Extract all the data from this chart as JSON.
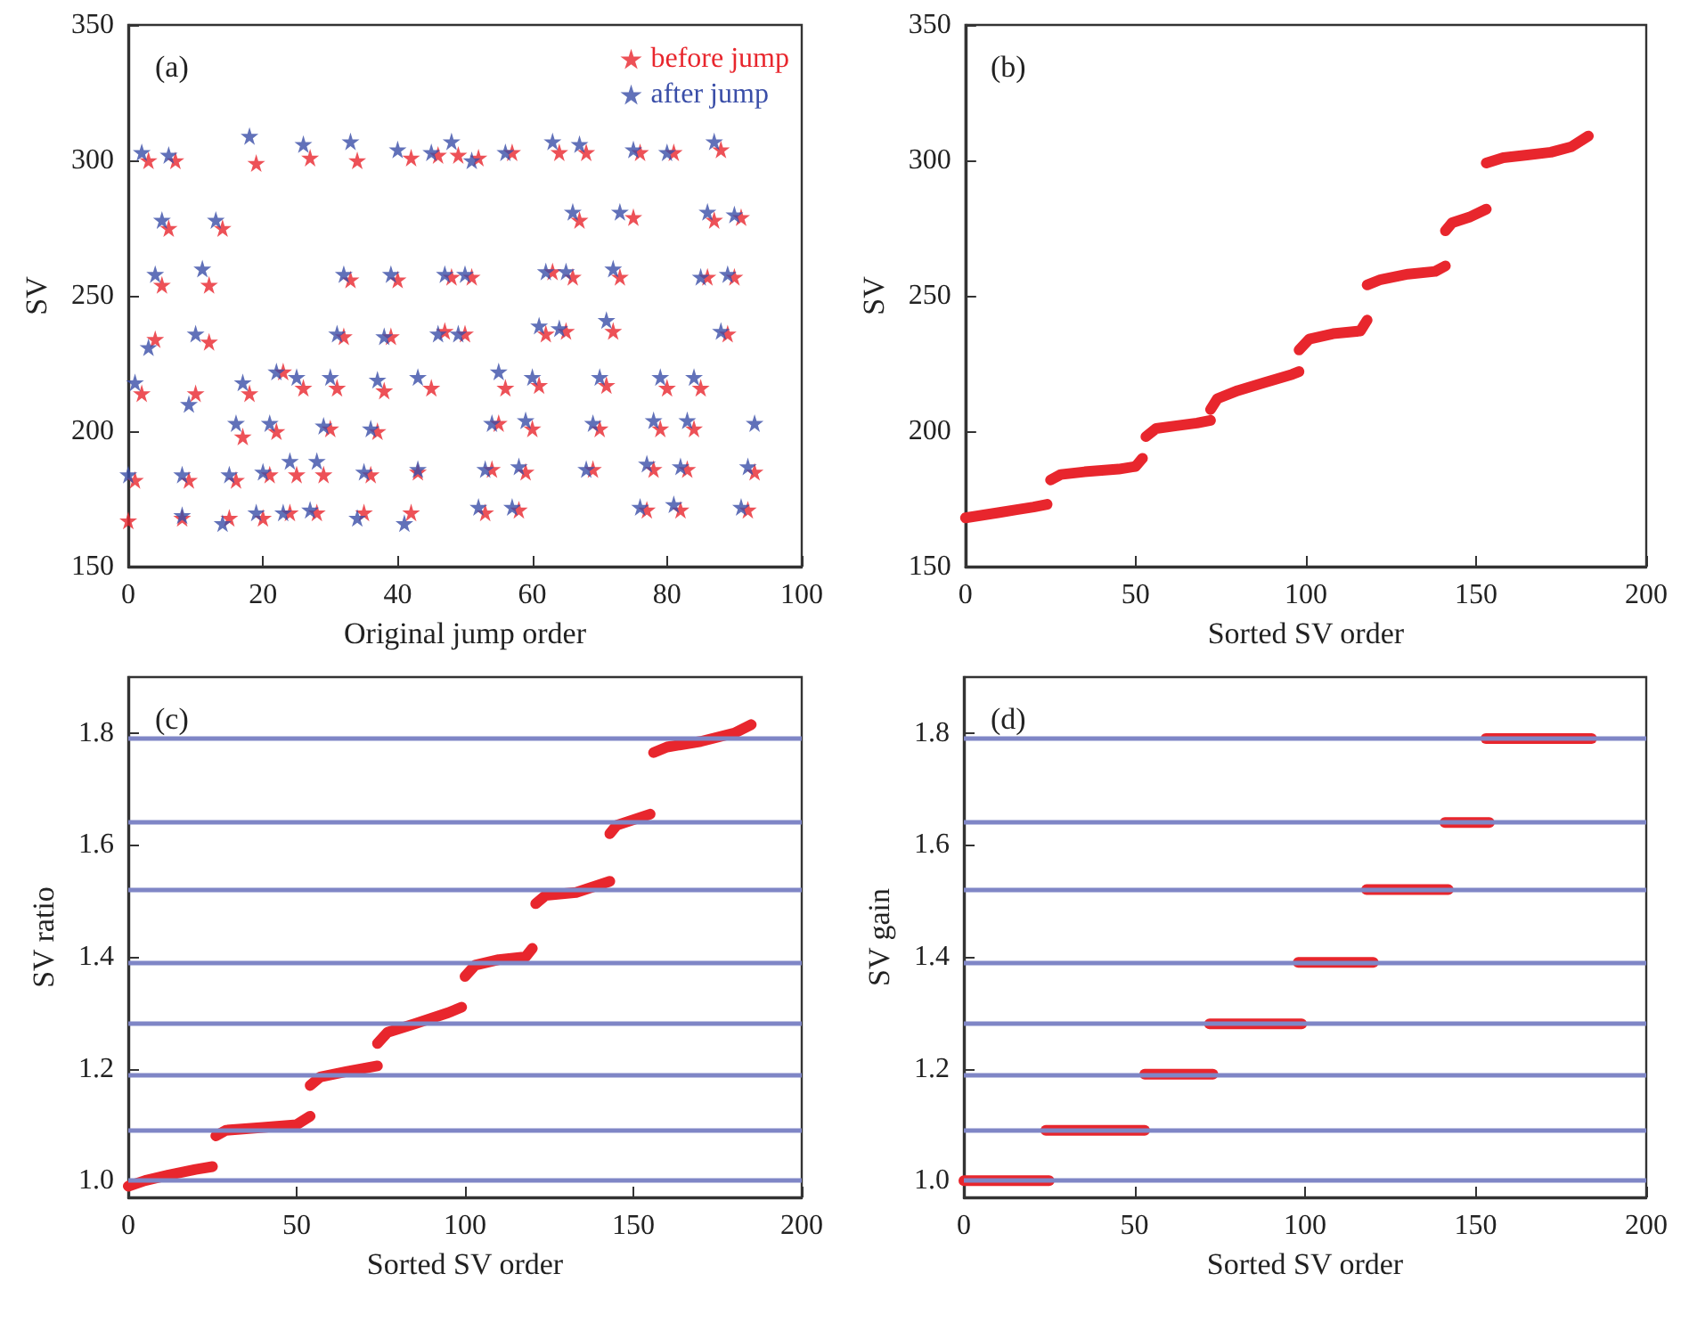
{
  "chart_data": [
    {
      "type": "scatter",
      "title": "(a)",
      "xlabel": "Original jump order",
      "ylabel": "SV",
      "xlim": [
        0,
        100
      ],
      "xticks": [
        0,
        20,
        40,
        60,
        80,
        100
      ],
      "ylim": [
        150,
        350
      ],
      "yticks": [
        150,
        200,
        250,
        300,
        350
      ],
      "marker": "star",
      "legend": "top right",
      "grid": false,
      "series": [
        {
          "name": "before jump",
          "color": "#e8262d",
          "x": [
            3,
            7,
            19,
            27,
            34,
            42,
            46,
            49,
            52,
            57,
            64,
            68,
            76,
            81,
            88,
            6,
            14,
            67,
            75,
            87,
            91,
            5,
            12,
            33,
            40,
            48,
            51,
            63,
            66,
            73,
            86,
            90,
            4,
            12,
            32,
            39,
            47,
            50,
            62,
            65,
            72,
            89,
            2,
            18,
            23,
            26,
            31,
            38,
            45,
            56,
            61,
            71,
            80,
            85,
            10,
            17,
            22,
            30,
            37,
            55,
            60,
            70,
            79,
            84,
            1,
            9,
            16,
            21,
            25,
            29,
            36,
            43,
            54,
            59,
            69,
            78,
            83,
            93,
            0,
            8,
            15,
            20,
            24,
            28,
            35,
            42,
            53,
            58,
            77,
            82,
            92
          ],
          "values": [
            300,
            300,
            299,
            301,
            300,
            301,
            302,
            302,
            301,
            303,
            303,
            303,
            303,
            303,
            304,
            275,
            275,
            278,
            279,
            278,
            279,
            254,
            254,
            256,
            256,
            257,
            257,
            259,
            257,
            257,
            257,
            257,
            234,
            233,
            235,
            235,
            237,
            236,
            236,
            237,
            237,
            236,
            214,
            214,
            222,
            216,
            216,
            215,
            216,
            216,
            217,
            217,
            216,
            216,
            214,
            198,
            200,
            201,
            200,
            203,
            201,
            201,
            201,
            201,
            182,
            182,
            182,
            184,
            184,
            184,
            184,
            185,
            186,
            185,
            186,
            186,
            186,
            185,
            167,
            168,
            168,
            168,
            170,
            170,
            170,
            170,
            170,
            171,
            171,
            171,
            171
          ]
        },
        {
          "name": "after jump",
          "color": "#3a4ea8",
          "x": [
            2,
            6,
            18,
            26,
            33,
            40,
            45,
            48,
            51,
            56,
            63,
            67,
            75,
            80,
            87,
            5,
            13,
            66,
            73,
            86,
            90,
            4,
            11,
            32,
            39,
            47,
            50,
            62,
            65,
            72,
            85,
            89,
            3,
            10,
            31,
            38,
            46,
            49,
            61,
            64,
            71,
            88,
            1,
            17,
            22,
            25,
            30,
            37,
            43,
            55,
            60,
            70,
            79,
            84,
            9,
            16,
            21,
            29,
            36,
            54,
            59,
            69,
            78,
            83,
            93,
            0,
            8,
            15,
            20,
            24,
            28,
            35,
            43,
            53,
            58,
            68,
            77,
            82,
            92,
            8,
            14,
            19,
            23,
            27,
            34,
            41,
            52,
            57,
            76,
            81,
            91
          ],
          "values": [
            303,
            302,
            309,
            306,
            307,
            304,
            303,
            307,
            300,
            303,
            307,
            306,
            304,
            303,
            307,
            278,
            278,
            281,
            281,
            281,
            280,
            258,
            260,
            258,
            258,
            258,
            258,
            259,
            259,
            260,
            257,
            258,
            231,
            236,
            236,
            235,
            236,
            236,
            239,
            238,
            241,
            237,
            218,
            218,
            222,
            220,
            220,
            219,
            220,
            222,
            220,
            220,
            220,
            220,
            210,
            203,
            203,
            202,
            201,
            203,
            204,
            203,
            204,
            204,
            203,
            184,
            184,
            184,
            185,
            189,
            189,
            185,
            186,
            186,
            187,
            186,
            188,
            187,
            187,
            169,
            166,
            170,
            170,
            171,
            168,
            166,
            172,
            172,
            172,
            173,
            172
          ]
        }
      ]
    },
    {
      "type": "line",
      "title": "(b)",
      "xlabel": "Sorted SV order",
      "ylabel": "SV",
      "xlim": [
        0,
        200
      ],
      "xticks": [
        0,
        50,
        100,
        150,
        200
      ],
      "ylim": [
        150,
        350
      ],
      "yticks": [
        150,
        200,
        250,
        300,
        350
      ],
      "marker": "none",
      "line_style": "solid",
      "grid": false,
      "series": [
        {
          "color": "#e8262d",
          "x": [
            0,
            5,
            10,
            15,
            20,
            24
          ],
          "values": [
            168,
            169,
            170,
            171,
            172,
            173
          ]
        },
        {
          "color": "#e8262d",
          "x": [
            25,
            28,
            35,
            45,
            50,
            52
          ],
          "values": [
            182,
            184,
            185,
            186,
            187,
            190
          ]
        },
        {
          "color": "#e8262d",
          "x": [
            53,
            56,
            62,
            68,
            72
          ],
          "values": [
            198,
            201,
            202,
            203,
            204
          ]
        },
        {
          "color": "#e8262d",
          "x": [
            72,
            74,
            80,
            88,
            96,
            98
          ],
          "values": [
            208,
            212,
            215,
            218,
            221,
            222
          ]
        },
        {
          "color": "#e8262d",
          "x": [
            98,
            101,
            108,
            116,
            118
          ],
          "values": [
            230,
            234,
            236,
            237,
            241
          ]
        },
        {
          "color": "#e8262d",
          "x": [
            118,
            122,
            130,
            138,
            141
          ],
          "values": [
            254,
            256,
            258,
            259,
            261
          ]
        },
        {
          "color": "#e8262d",
          "x": [
            141,
            143,
            148,
            153
          ],
          "values": [
            274,
            277,
            279,
            282
          ]
        },
        {
          "color": "#e8262d",
          "x": [
            153,
            158,
            165,
            172,
            178,
            183
          ],
          "values": [
            299,
            301,
            302,
            303,
            305,
            309
          ]
        }
      ]
    },
    {
      "type": "line",
      "title": "(c)",
      "xlabel": "Sorted SV order",
      "ylabel": "SV ratio",
      "xlim": [
        0,
        200
      ],
      "xticks": [
        0,
        50,
        100,
        150,
        200
      ],
      "ylim": [
        0.97,
        1.9
      ],
      "yticks": [
        {
          "value": 1,
          "label": "1.0"
        },
        1.2,
        1.4,
        1.6,
        1.8
      ],
      "marker": "none",
      "line_style": "solid",
      "grid": false,
      "ref_lines": [
        {
          "axis": "y",
          "value": 1.0,
          "color": "#7f86c6"
        },
        {
          "axis": "y",
          "value": 1.09,
          "color": "#7f86c6"
        },
        {
          "axis": "y",
          "value": 1.19,
          "color": "#7f86c6"
        },
        {
          "axis": "y",
          "value": 1.28,
          "color": "#7f86c6"
        },
        {
          "axis": "y",
          "value": 1.39,
          "color": "#7f86c6"
        },
        {
          "axis": "y",
          "value": 1.52,
          "color": "#7f86c6"
        },
        {
          "axis": "y",
          "value": 1.64,
          "color": "#7f86c6"
        },
        {
          "axis": "y",
          "value": 1.79,
          "color": "#7f86c6"
        }
      ],
      "series": [
        {
          "color": "#e8262d",
          "x": [
            0,
            5,
            12,
            20,
            25
          ],
          "values": [
            0.99,
            1.0,
            1.01,
            1.02,
            1.025
          ]
        },
        {
          "color": "#e8262d",
          "x": [
            26,
            29,
            40,
            50,
            54
          ],
          "values": [
            1.08,
            1.09,
            1.095,
            1.1,
            1.115
          ]
        },
        {
          "color": "#e8262d",
          "x": [
            54,
            57,
            65,
            74
          ],
          "values": [
            1.17,
            1.185,
            1.195,
            1.205
          ]
        },
        {
          "color": "#e8262d",
          "x": [
            74,
            77,
            85,
            95,
            99
          ],
          "values": [
            1.245,
            1.265,
            1.28,
            1.3,
            1.31
          ]
        },
        {
          "color": "#e8262d",
          "x": [
            100,
            103,
            110,
            118,
            120
          ],
          "values": [
            1.365,
            1.385,
            1.395,
            1.4,
            1.415
          ]
        },
        {
          "color": "#e8262d",
          "x": [
            121,
            124,
            133,
            143
          ],
          "values": [
            1.495,
            1.51,
            1.515,
            1.535
          ]
        },
        {
          "color": "#e8262d",
          "x": [
            143,
            145,
            155
          ],
          "values": [
            1.62,
            1.635,
            1.655
          ]
        },
        {
          "color": "#e8262d",
          "x": [
            156,
            160,
            170,
            180,
            185
          ],
          "values": [
            1.765,
            1.775,
            1.785,
            1.8,
            1.815
          ]
        }
      ]
    },
    {
      "type": "line",
      "title": "(d)",
      "xlabel": "Sorted SV order",
      "ylabel": "SV gain",
      "xlim": [
        0,
        200
      ],
      "xticks": [
        0,
        50,
        100,
        150,
        200
      ],
      "ylim": [
        0.97,
        1.9
      ],
      "yticks": [
        {
          "value": 1,
          "label": "1.0"
        },
        1.2,
        1.4,
        1.6,
        1.8
      ],
      "marker": "none",
      "line_style": "solid",
      "grid": false,
      "ref_lines": [
        {
          "axis": "y",
          "value": 1.0,
          "color": "#7f86c6"
        },
        {
          "axis": "y",
          "value": 1.09,
          "color": "#7f86c6"
        },
        {
          "axis": "y",
          "value": 1.19,
          "color": "#7f86c6"
        },
        {
          "axis": "y",
          "value": 1.28,
          "color": "#7f86c6"
        },
        {
          "axis": "y",
          "value": 1.39,
          "color": "#7f86c6"
        },
        {
          "axis": "y",
          "value": 1.52,
          "color": "#7f86c6"
        },
        {
          "axis": "y",
          "value": 1.64,
          "color": "#7f86c6"
        },
        {
          "axis": "y",
          "value": 1.79,
          "color": "#7f86c6"
        }
      ],
      "series": [
        {
          "color": "#e8262d",
          "x": [
            0,
            25
          ],
          "values": [
            1.0,
            1.0
          ]
        },
        {
          "color": "#e8262d",
          "x": [
            24,
            53
          ],
          "values": [
            1.09,
            1.09
          ]
        },
        {
          "color": "#e8262d",
          "x": [
            53,
            73
          ],
          "values": [
            1.19,
            1.19
          ]
        },
        {
          "color": "#e8262d",
          "x": [
            72,
            99
          ],
          "values": [
            1.28,
            1.28
          ]
        },
        {
          "color": "#e8262d",
          "x": [
            98,
            120
          ],
          "values": [
            1.39,
            1.39
          ]
        },
        {
          "color": "#e8262d",
          "x": [
            118,
            142
          ],
          "values": [
            1.52,
            1.52
          ]
        },
        {
          "color": "#e8262d",
          "x": [
            141,
            154
          ],
          "values": [
            1.64,
            1.64
          ]
        },
        {
          "color": "#e8262d",
          "x": [
            153,
            184
          ],
          "values": [
            1.79,
            1.79
          ]
        }
      ]
    }
  ]
}
